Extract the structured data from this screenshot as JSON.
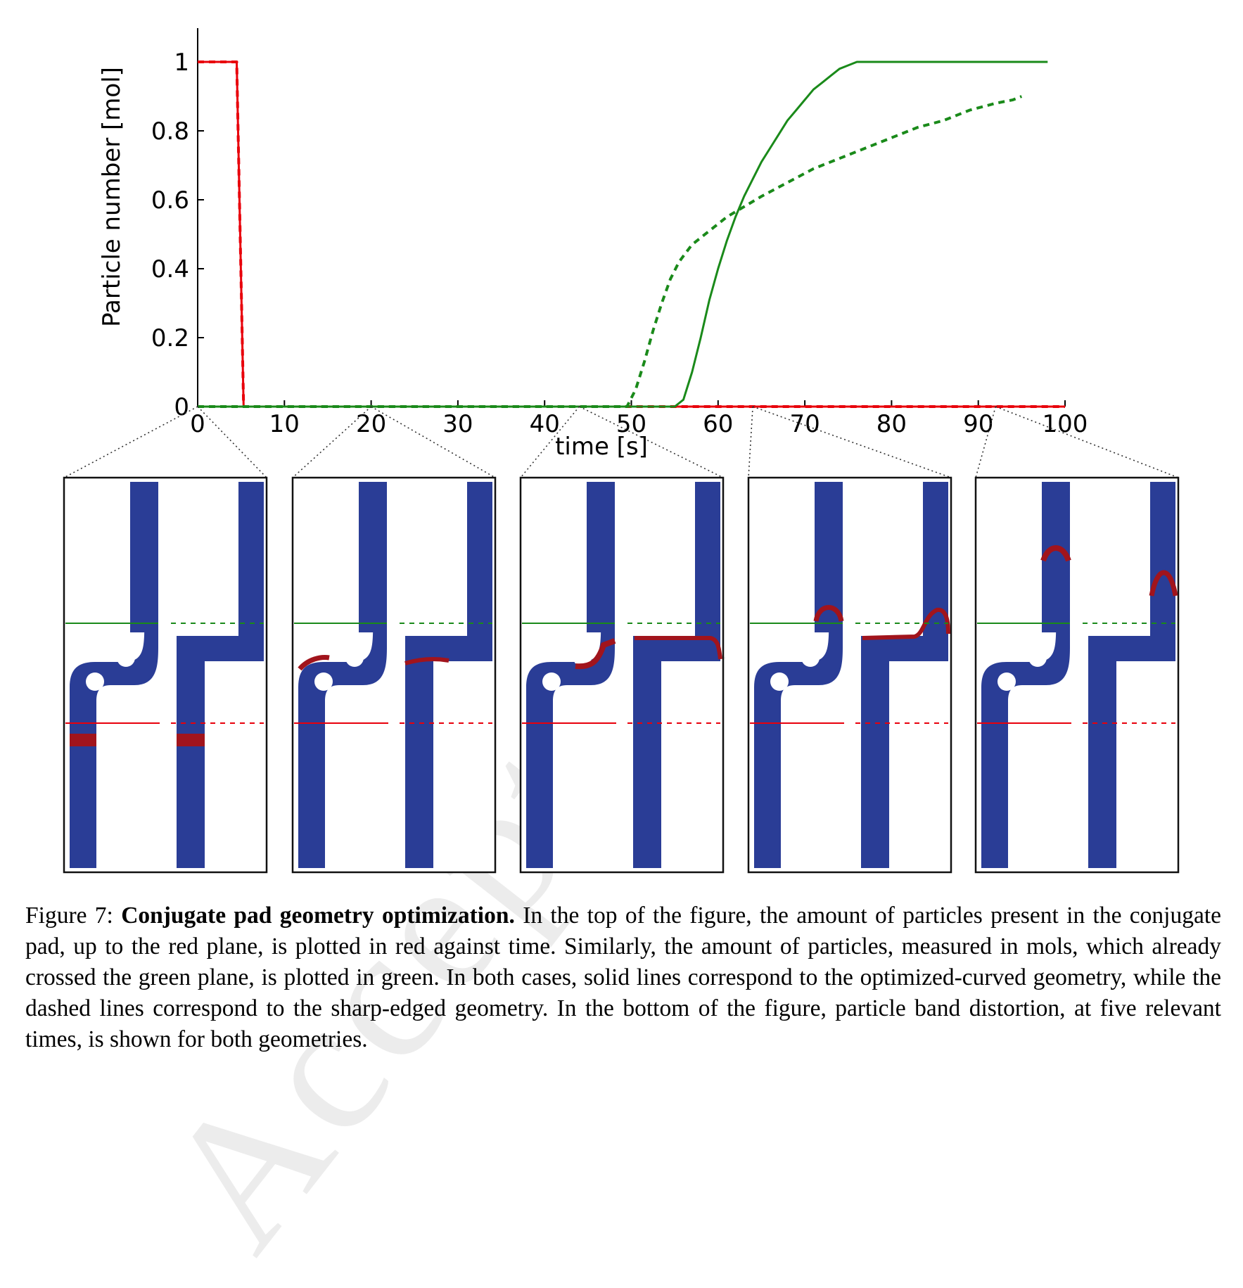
{
  "chart_data": {
    "type": "line",
    "xlabel": "time [s]",
    "ylabel": "Particle number [mol]",
    "xlim": [
      0,
      100
    ],
    "ylim": [
      0,
      1.1
    ],
    "xticks": [
      0,
      10,
      20,
      30,
      40,
      50,
      60,
      70,
      80,
      90,
      100
    ],
    "yticks": [
      0,
      0.2,
      0.4,
      0.6,
      0.8,
      1
    ],
    "xtick_labels": [
      "0",
      "10",
      "20",
      "30",
      "40",
      "50",
      "60",
      "70",
      "80",
      "90",
      "100"
    ],
    "ytick_labels": [
      "0",
      "0.2",
      "0.4",
      "0.6",
      "0.8",
      "1"
    ],
    "grid": false,
    "series": [
      {
        "color": "#e8000b",
        "style": "solid",
        "x": [
          0,
          4.5,
          5.3,
          100
        ],
        "y": [
          1,
          1,
          0,
          0
        ]
      },
      {
        "color": "#e8000b",
        "style": "dashed",
        "x": [
          0,
          4.5,
          5.3,
          100
        ],
        "y": [
          1,
          1,
          0,
          0
        ]
      },
      {
        "color": "#1a8a1a",
        "style": "solid",
        "x": [
          0,
          55,
          56,
          57,
          58,
          59,
          60,
          61,
          62,
          63,
          64,
          65,
          66,
          67,
          68,
          69,
          70,
          71,
          72,
          73,
          74,
          75,
          76,
          78,
          80,
          84,
          90,
          98
        ],
        "y": [
          0,
          0,
          0.02,
          0.1,
          0.2,
          0.31,
          0.4,
          0.48,
          0.55,
          0.61,
          0.66,
          0.71,
          0.75,
          0.79,
          0.83,
          0.86,
          0.89,
          0.92,
          0.94,
          0.96,
          0.98,
          0.99,
          1.0,
          1.0,
          1.0,
          1.0,
          1.0,
          1.0
        ]
      },
      {
        "color": "#1a8a1a",
        "style": "dashed",
        "x": [
          0,
          49.5,
          50.5,
          51.5,
          52.5,
          53.5,
          54.5,
          55.5,
          57,
          59,
          61,
          63,
          65,
          68,
          71,
          74,
          77,
          80,
          83,
          86,
          89,
          92,
          94,
          95
        ],
        "y": [
          0,
          0,
          0.05,
          0.13,
          0.22,
          0.3,
          0.37,
          0.42,
          0.47,
          0.51,
          0.55,
          0.58,
          0.61,
          0.65,
          0.69,
          0.72,
          0.75,
          0.78,
          0.81,
          0.83,
          0.86,
          0.88,
          0.89,
          0.9
        ]
      }
    ]
  },
  "snapshots": {
    "zoom_times": [
      0,
      20,
      44,
      64,
      92
    ],
    "colors": {
      "background": "#2a3d96",
      "band": "#a1141c",
      "green_plane": "#1a8a1a",
      "red_plane": "#e8000b"
    },
    "band_progress": [
      "start",
      "bend",
      "exit-bend",
      "upper",
      "top"
    ]
  },
  "caption": {
    "label": "Figure 7:",
    "title": "Conjugate pad geometry optimization.",
    "text": "In the top of the figure, the amount of particles present in the conjugate pad, up to the red plane, is plotted in red against time. Similarly, the amount of particles, measured in mols, which already crossed the green plane, is plotted in green. In both cases, solid lines correspond to the optimized-curved geometry, while the dashed lines correspond to the sharp-edged geometry. In the bottom of the figure, particle band distortion, at five relevant times, is shown for both geometries."
  },
  "watermark": "Accepted"
}
